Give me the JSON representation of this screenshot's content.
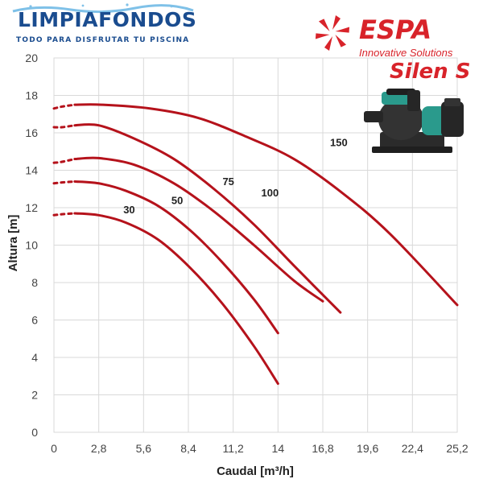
{
  "header": {
    "brand_name": "LIMPIAFONDOS",
    "brand_tagline": "TODO PARA DISFRUTAR TU PISCINA",
    "maker_name": "ESPA",
    "maker_tagline": "Innovative Solutions",
    "product_name": "Silen S"
  },
  "colors": {
    "curve": "#b5121b",
    "grid": "#d9d9d9",
    "brand_blue": "#1a4c8f",
    "maker_red": "#d8232a"
  },
  "icons": [
    "espa-logo-icon",
    "pump-illustration",
    "water-splash-icon"
  ],
  "chart_data": {
    "type": "line",
    "title": "",
    "xlabel": "Caudal [m³/h]",
    "ylabel": "Altura [m]",
    "xlim": [
      0,
      25.2
    ],
    "ylim": [
      0,
      20
    ],
    "x_ticks": [
      "0",
      "2,8",
      "5,6",
      "8,4",
      "11,2",
      "14",
      "16,8",
      "19,6",
      "22,4",
      "25,2"
    ],
    "y_ticks": [
      "0",
      "2",
      "4",
      "6",
      "8",
      "10",
      "12",
      "14",
      "16",
      "18",
      "20"
    ],
    "grid": true,
    "legend": "none",
    "series": [
      {
        "name": "30",
        "x": [
          0,
          0.5,
          1.3,
          2.8,
          4.5,
          6.5,
          8.5,
          10.5,
          12.5,
          14
        ],
        "y": [
          11.6,
          11.65,
          11.7,
          11.6,
          11.2,
          10.3,
          8.8,
          6.9,
          4.6,
          2.6
        ]
      },
      {
        "name": "50",
        "x": [
          0,
          0.5,
          1.3,
          2.8,
          4.5,
          6.5,
          8.5,
          10.5,
          12.5,
          14
        ],
        "y": [
          13.3,
          13.35,
          13.4,
          13.3,
          12.9,
          12.1,
          10.8,
          9.1,
          7.1,
          5.3
        ]
      },
      {
        "name": "75",
        "x": [
          0,
          0.5,
          1.3,
          2.8,
          5,
          7.5,
          10,
          12.5,
          15,
          16.8
        ],
        "y": [
          14.4,
          14.45,
          14.6,
          14.65,
          14.3,
          13.3,
          11.8,
          10.0,
          8.1,
          7.0
        ]
      },
      {
        "name": "100",
        "x": [
          0,
          0.5,
          1.3,
          2.8,
          5,
          7.5,
          10,
          12.5,
          15,
          17.9
        ],
        "y": [
          16.3,
          16.3,
          16.4,
          16.4,
          15.7,
          14.6,
          13.0,
          11.1,
          8.9,
          6.4
        ]
      },
      {
        "name": "150",
        "x": [
          0,
          0.5,
          1.3,
          3,
          6,
          9,
          12,
          15,
          18,
          21,
          25.2
        ],
        "y": [
          17.3,
          17.4,
          17.5,
          17.5,
          17.3,
          16.8,
          15.8,
          14.6,
          12.8,
          10.6,
          6.8
        ]
      }
    ],
    "curve_labels": [
      {
        "text": "30",
        "x": 4.7,
        "y": 11.7
      },
      {
        "text": "50",
        "x": 7.7,
        "y": 12.2
      },
      {
        "text": "75",
        "x": 10.9,
        "y": 13.2
      },
      {
        "text": "100",
        "x": 13.5,
        "y": 12.6
      },
      {
        "text": "150",
        "x": 17.8,
        "y": 15.3
      }
    ]
  }
}
